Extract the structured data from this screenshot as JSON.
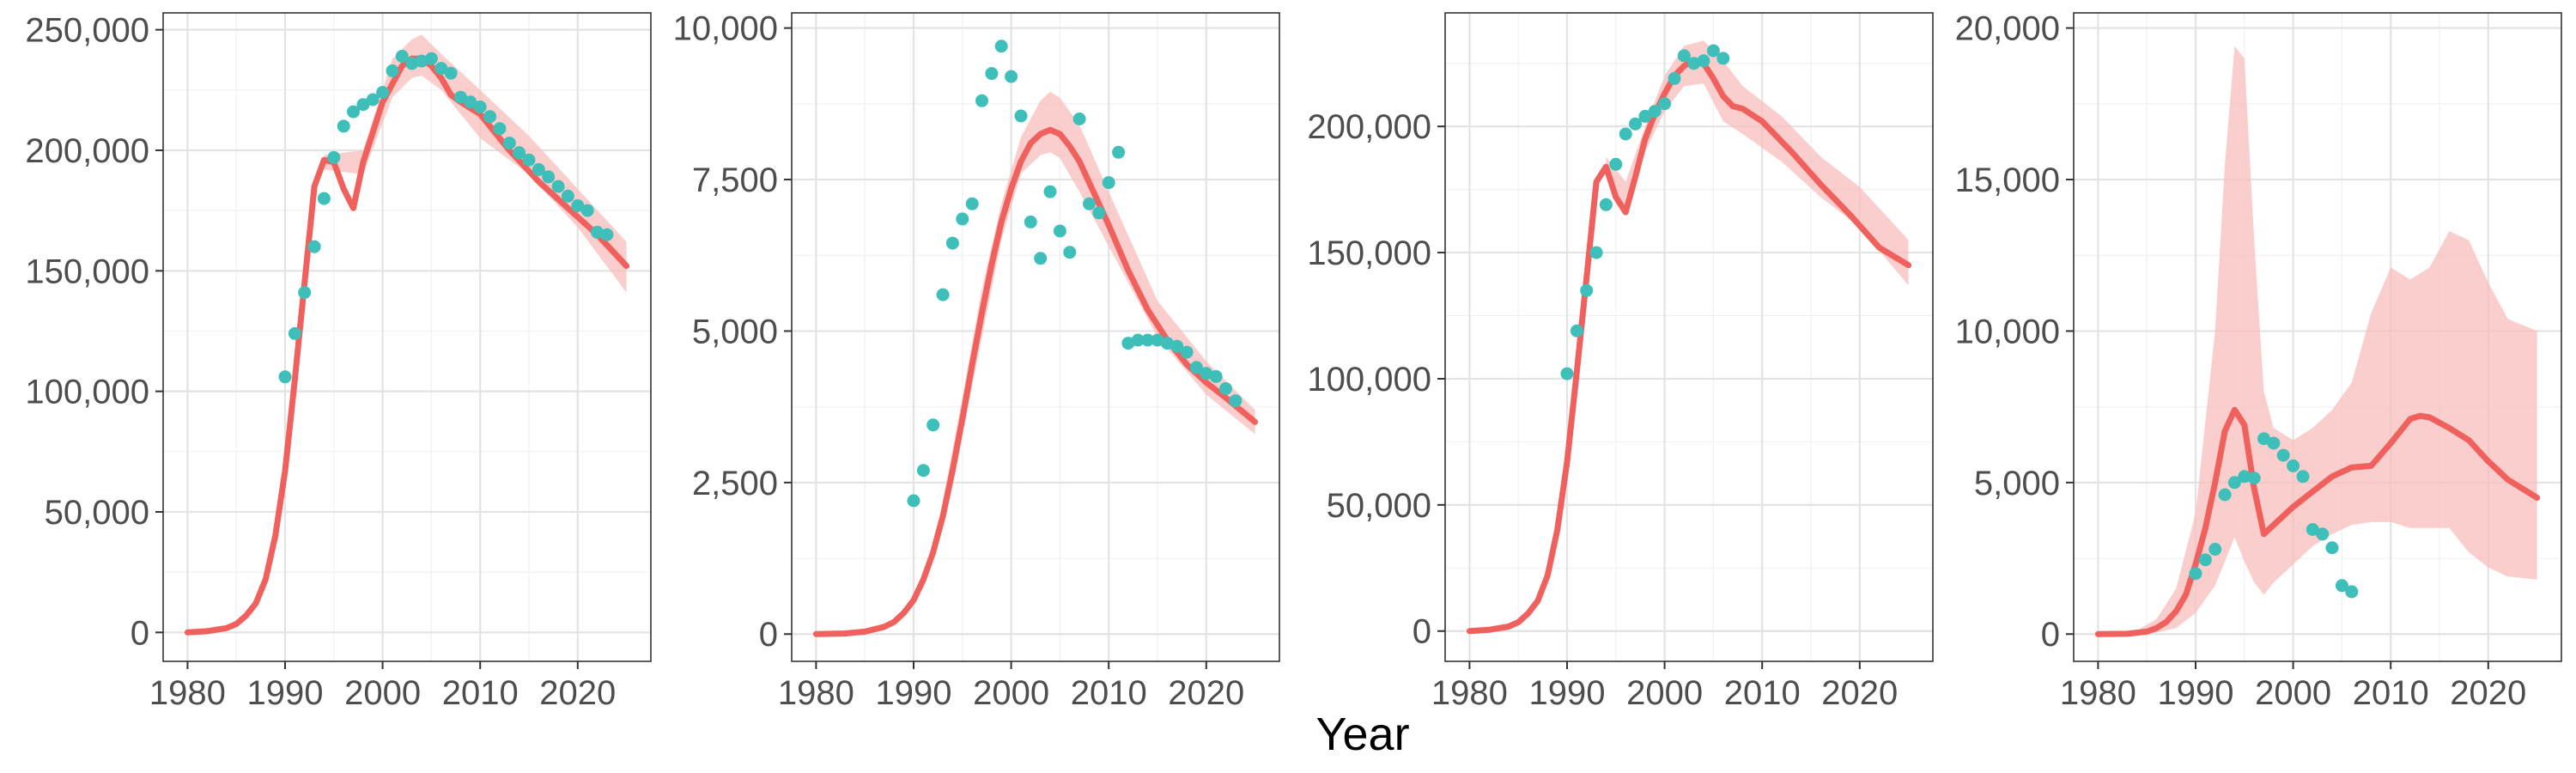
{
  "chart_data": {
    "type": "line",
    "xlabel": "Year",
    "series_colors": {
      "fit": "#F0605D",
      "band": "#F8BDBB",
      "observed": "#3FBFBA"
    },
    "panels": [
      {
        "xlim": [
          1977.5,
          2027.5
        ],
        "ylim": [
          -12000,
          257000
        ],
        "x_ticks": [
          1980,
          1990,
          2000,
          2010,
          2020
        ],
        "x_tick_labels": [
          "1980",
          "1990",
          "2000",
          "2010",
          "2020"
        ],
        "y_ticks": [
          0,
          50000,
          100000,
          150000,
          200000,
          250000
        ],
        "y_tick_labels": [
          "0",
          "50,000",
          "100,000",
          "150,000",
          "200,000",
          "250,000"
        ],
        "fit": {
          "x": [
            1980,
            1982,
            1984,
            1985,
            1986,
            1987,
            1988,
            1989,
            1990,
            1991,
            1992,
            1993,
            1994,
            1995,
            1996,
            1997,
            1998,
            2000,
            2002,
            2003,
            2004,
            2005,
            2006,
            2007,
            2008,
            2010,
            2013,
            2016,
            2019,
            2022,
            2025
          ],
          "y": [
            0,
            500,
            1800,
            3500,
            7000,
            12000,
            22000,
            40000,
            67000,
            105000,
            145000,
            185000,
            196000,
            195000,
            184000,
            176000,
            195000,
            220000,
            235000,
            238000,
            238000,
            235000,
            230000,
            223000,
            220000,
            215000,
            200000,
            187000,
            176000,
            165000,
            152000
          ]
        },
        "band": {
          "x": [
            1994,
            1998,
            2001,
            2003,
            2004,
            2006,
            2010,
            2015,
            2020,
            2025
          ],
          "upper": [
            198000,
            200000,
            238000,
            246000,
            248000,
            240000,
            225000,
            206000,
            184000,
            162000
          ],
          "lower": [
            192000,
            190000,
            222000,
            230000,
            231000,
            225000,
            205000,
            190000,
            168000,
            141000
          ]
        },
        "observed": {
          "x": [
            1990,
            1991,
            1992,
            1993,
            1994,
            1995,
            1996,
            1997,
            1998,
            1999,
            2000,
            2001,
            2002,
            2003,
            2004,
            2005,
            2006,
            2007,
            2008,
            2009,
            2010,
            2011,
            2012,
            2013,
            2014,
            2015,
            2016,
            2017,
            2018,
            2019,
            2020,
            2021,
            2022,
            2023
          ],
          "y": [
            106000,
            124000,
            141000,
            160000,
            180000,
            197000,
            210000,
            216000,
            219000,
            221000,
            224000,
            233000,
            239000,
            236000,
            237000,
            238000,
            234000,
            232000,
            222000,
            220000,
            218000,
            214000,
            209000,
            203000,
            199000,
            196000,
            192000,
            189000,
            185000,
            181000,
            177000,
            175000,
            166000,
            165000
          ]
        }
      },
      {
        "xlim": [
          1977.5,
          2027.5
        ],
        "ylim": [
          -450,
          10250
        ],
        "x_ticks": [
          1980,
          1990,
          2000,
          2010,
          2020
        ],
        "x_tick_labels": [
          "1980",
          "1990",
          "2000",
          "2010",
          "2020"
        ],
        "y_ticks": [
          0,
          2500,
          5000,
          7500,
          10000
        ],
        "y_tick_labels": [
          "0",
          "2,500",
          "5,000",
          "7,500",
          "10,000"
        ],
        "fit": {
          "x": [
            1980,
            1983,
            1985,
            1987,
            1988,
            1989,
            1990,
            1991,
            1992,
            1993,
            1994,
            1995,
            1996,
            1997,
            1998,
            1999,
            2000,
            2001,
            2002,
            2003,
            2004,
            2005,
            2006,
            2007,
            2008,
            2010,
            2012,
            2014,
            2016,
            2018,
            2020,
            2022,
            2025
          ],
          "y": [
            0,
            10,
            40,
            120,
            200,
            350,
            560,
            900,
            1350,
            1950,
            2700,
            3550,
            4450,
            5300,
            6100,
            6800,
            7350,
            7800,
            8100,
            8250,
            8320,
            8250,
            8050,
            7800,
            7450,
            6750,
            6000,
            5350,
            4850,
            4450,
            4150,
            3900,
            3500
          ]
        },
        "band": {
          "x": [
            1993,
            1995,
            1997,
            1999,
            2001,
            2003,
            2004,
            2005,
            2007,
            2010,
            2015,
            2020,
            2025
          ],
          "upper": [
            2200,
            3900,
            5700,
            7100,
            8200,
            8800,
            8950,
            8850,
            8400,
            7300,
            5500,
            4500,
            3700
          ],
          "lower": [
            1800,
            3300,
            4900,
            6500,
            7600,
            7900,
            7950,
            7850,
            7300,
            6400,
            4900,
            3950,
            3300
          ]
        },
        "observed": {
          "x": [
            1990,
            1991,
            1992,
            1993,
            1994,
            1995,
            1996,
            1997,
            1998,
            1999,
            2000,
            2001,
            2002,
            2003,
            2004,
            2005,
            2006,
            2007,
            2008,
            2009,
            2010,
            2011,
            2012,
            2013,
            2014,
            2015,
            2016,
            2017,
            2018,
            2019,
            2020,
            2021,
            2022,
            2023
          ],
          "y": [
            2200,
            2700,
            3450,
            5600,
            6450,
            6850,
            7100,
            8800,
            9250,
            9700,
            9200,
            8550,
            6800,
            6200,
            7300,
            6650,
            6300,
            8500,
            7100,
            6950,
            7450,
            7950,
            4800,
            4850,
            4850,
            4850,
            4800,
            4750,
            4650,
            4400,
            4300,
            4250,
            4050,
            3850
          ]
        }
      },
      {
        "xlim": [
          1977.5,
          2027.5
        ],
        "ylim": [
          -12000,
          245000
        ],
        "x_ticks": [
          1980,
          1990,
          2000,
          2010,
          2020
        ],
        "x_tick_labels": [
          "1980",
          "1990",
          "2000",
          "2010",
          "2020"
        ],
        "y_ticks": [
          0,
          50000,
          100000,
          150000,
          200000
        ],
        "y_tick_labels": [
          "0",
          "50,000",
          "100,000",
          "150,000",
          "200,000"
        ],
        "fit": {
          "x": [
            1980,
            1982,
            1984,
            1985,
            1986,
            1987,
            1988,
            1989,
            1990,
            1991,
            1992,
            1993,
            1994,
            1995,
            1996,
            1997,
            1998,
            1999,
            2000,
            2001,
            2002,
            2003,
            2004,
            2005,
            2006,
            2007,
            2008,
            2010,
            2013,
            2016,
            2019,
            2022,
            2025
          ],
          "y": [
            0,
            500,
            1800,
            3500,
            7000,
            12000,
            22000,
            40000,
            67000,
            103000,
            140000,
            178000,
            184000,
            172000,
            166000,
            180000,
            195000,
            205000,
            213000,
            220000,
            224000,
            226000,
            225000,
            219000,
            212000,
            208000,
            207000,
            202000,
            190000,
            177000,
            165000,
            152000,
            145000
          ]
        },
        "band": {
          "x": [
            1994,
            1996,
            1998,
            2000,
            2002,
            2004,
            2006,
            2008,
            2012,
            2016,
            2020,
            2025
          ],
          "upper": [
            188000,
            178000,
            200000,
            220000,
            232000,
            234000,
            226000,
            216000,
            204000,
            188000,
            176000,
            155000
          ],
          "lower": [
            180000,
            168000,
            190000,
            206000,
            216000,
            217000,
            202000,
            197000,
            186000,
            172000,
            160000,
            137000
          ]
        },
        "observed": {
          "x": [
            1990,
            1991,
            1992,
            1993,
            1994,
            1995,
            1996,
            1997,
            1998,
            1999,
            2000,
            2001,
            2002,
            2003,
            2004,
            2005,
            2006
          ],
          "y": [
            102000,
            119000,
            135000,
            150000,
            169000,
            185000,
            197000,
            201000,
            204000,
            206000,
            209000,
            219000,
            228000,
            225000,
            226000,
            230000,
            227000
          ]
        }
      },
      {
        "xlim": [
          1977.5,
          2027.5
        ],
        "ylim": [
          -900,
          20500
        ],
        "x_ticks": [
          1980,
          1990,
          2000,
          2010,
          2020
        ],
        "x_tick_labels": [
          "1980",
          "1990",
          "2000",
          "2010",
          "2020"
        ],
        "y_ticks": [
          0,
          5000,
          10000,
          15000,
          20000
        ],
        "y_tick_labels": [
          "0",
          "5,000",
          "10,000",
          "15,000",
          "20,000"
        ],
        "fit": {
          "x": [
            1980,
            1983,
            1985,
            1986,
            1987,
            1988,
            1989,
            1990,
            1991,
            1992,
            1993,
            1994,
            1995,
            1996,
            1997,
            1998,
            2000,
            2002,
            2004,
            2006,
            2008,
            2010,
            2012,
            2013,
            2014,
            2016,
            2018,
            2020,
            2022,
            2025
          ],
          "y": [
            0,
            10,
            80,
            200,
            400,
            750,
            1300,
            2300,
            3500,
            5000,
            6700,
            7400,
            6900,
            4800,
            3300,
            3600,
            4200,
            4700,
            5200,
            5500,
            5550,
            6300,
            7100,
            7200,
            7150,
            6800,
            6400,
            5700,
            5100,
            4500
          ]
        },
        "band": {
          "x": [
            1980,
            1984,
            1986,
            1988,
            1990,
            1992,
            1993,
            1994,
            1995,
            1996,
            1997,
            1998,
            2000,
            2002,
            2004,
            2006,
            2008,
            2010,
            2012,
            2014,
            2016,
            2018,
            2020,
            2022,
            2025
          ],
          "upper": [
            0,
            120,
            500,
            1500,
            4000,
            10000,
            15500,
            19400,
            19000,
            13000,
            8000,
            6800,
            6400,
            6800,
            7400,
            8300,
            10600,
            12100,
            11700,
            12100,
            13300,
            13000,
            11600,
            10400,
            10000
          ],
          "lower": [
            0,
            0,
            50,
            200,
            700,
            1600,
            2400,
            3200,
            2400,
            1700,
            1300,
            1700,
            2300,
            2900,
            3300,
            3600,
            3700,
            3700,
            3500,
            3500,
            3500,
            2700,
            2200,
            1900,
            1800
          ]
        },
        "observed": {
          "x": [
            1990,
            1991,
            1992,
            1993,
            1994,
            1995,
            1996,
            1997,
            1998,
            1999,
            2000,
            2001,
            2002,
            2003,
            2004,
            2005,
            2006
          ],
          "y": [
            2000,
            2450,
            2800,
            4600,
            5000,
            5200,
            5150,
            6450,
            6300,
            5900,
            5550,
            5200,
            3450,
            3300,
            2850,
            1600,
            1400
          ]
        }
      }
    ]
  }
}
